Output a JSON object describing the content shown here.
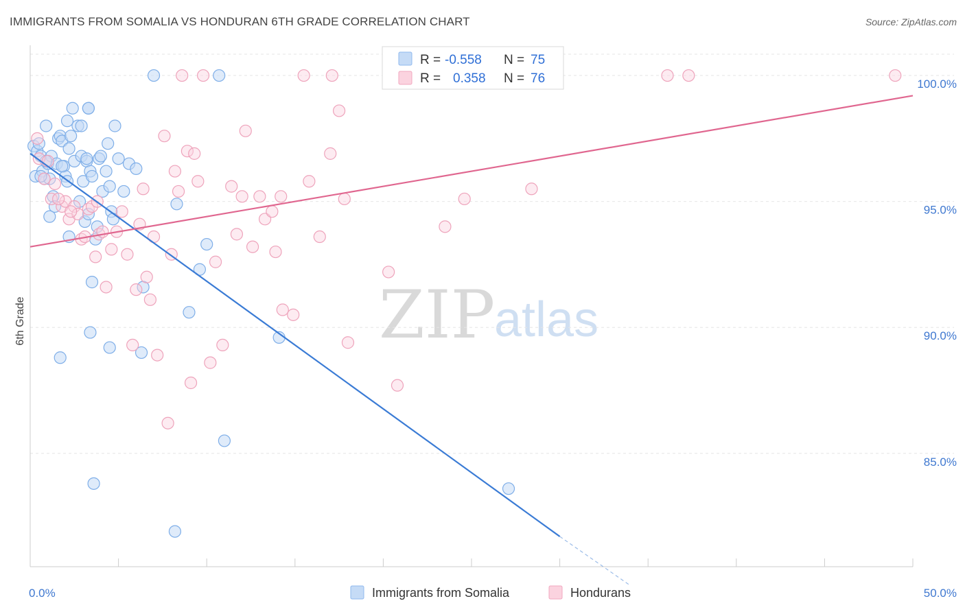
{
  "title": "IMMIGRANTS FROM SOMALIA VS HONDURAN 6TH GRADE CORRELATION CHART",
  "source": "Source: ZipAtlas.com",
  "watermark": {
    "zip": "ZIP",
    "atlas": "atlas"
  },
  "legend": {
    "rows": [
      {
        "r_label": "R =",
        "r_value": "-0.558",
        "n_label": "N =",
        "n_value": "75",
        "color": "#8fb8ee",
        "fill": "#c5dbf6"
      },
      {
        "r_label": "R =",
        "r_value": "0.358",
        "n_label": "N =",
        "n_value": "76",
        "color": "#f1a7bf",
        "fill": "#fbd3df"
      }
    ]
  },
  "bottom_legend": [
    "Immigrants from Somalia",
    "Hondurans"
  ],
  "chart_data": {
    "type": "scatter",
    "ylabel": "6th Grade",
    "xlim": [
      0,
      50
    ],
    "ylim": [
      80.5,
      101.2
    ],
    "x_ticks": [
      "0.0%",
      "50.0%"
    ],
    "y_ticks": [
      {
        "value": 100,
        "label": "100.0%"
      },
      {
        "value": 95,
        "label": "95.0%"
      },
      {
        "value": 90,
        "label": "90.0%"
      },
      {
        "value": 85,
        "label": "85.0%"
      }
    ],
    "grid": true,
    "colors": {
      "somalia": "#3a7bd5",
      "somalia_fill": "#c5dbf6",
      "hondurans": "#e0668f",
      "hondurans_fill": "#fbd3df"
    },
    "series": [
      {
        "name": "Immigrants from Somalia",
        "trend": {
          "x": [
            0,
            30
          ],
          "y": [
            96.9,
            81.7
          ],
          "dash_to": [
            33.9,
            79.8
          ]
        },
        "points": [
          [
            0.2,
            97.2
          ],
          [
            0.3,
            96.0
          ],
          [
            0.4,
            97.0
          ],
          [
            0.5,
            97.3
          ],
          [
            0.6,
            96.8
          ],
          [
            0.7,
            96.2
          ],
          [
            0.8,
            95.9
          ],
          [
            0.9,
            98.0
          ],
          [
            1.0,
            96.5
          ],
          [
            1.1,
            94.4
          ],
          [
            1.2,
            96.8
          ],
          [
            1.3,
            95.2
          ],
          [
            1.4,
            94.8
          ],
          [
            1.5,
            96.5
          ],
          [
            1.6,
            97.5
          ],
          [
            1.7,
            97.6
          ],
          [
            1.8,
            97.4
          ],
          [
            1.9,
            96.4
          ],
          [
            2.0,
            96.0
          ],
          [
            2.1,
            95.8
          ],
          [
            2.2,
            97.1
          ],
          [
            2.3,
            97.6
          ],
          [
            2.4,
            98.7
          ],
          [
            2.5,
            96.6
          ],
          [
            2.7,
            98.0
          ],
          [
            2.8,
            95.0
          ],
          [
            2.9,
            96.8
          ],
          [
            3.0,
            95.8
          ],
          [
            3.1,
            94.2
          ],
          [
            3.2,
            96.6
          ],
          [
            3.3,
            98.7
          ],
          [
            3.4,
            96.2
          ],
          [
            3.5,
            96.0
          ],
          [
            3.7,
            93.5
          ],
          [
            3.8,
            94.0
          ],
          [
            3.9,
            96.7
          ],
          [
            4.0,
            96.8
          ],
          [
            4.1,
            95.4
          ],
          [
            4.3,
            96.2
          ],
          [
            4.4,
            97.3
          ],
          [
            4.5,
            95.6
          ],
          [
            4.6,
            94.6
          ],
          [
            4.7,
            94.3
          ],
          [
            4.8,
            98.0
          ],
          [
            2.1,
            98.2
          ],
          [
            2.2,
            93.6
          ],
          [
            3.3,
            94.5
          ],
          [
            1.1,
            95.9
          ],
          [
            1.8,
            96.4
          ],
          [
            0.9,
            96.6
          ],
          [
            5.0,
            96.7
          ],
          [
            5.3,
            95.4
          ],
          [
            5.6,
            96.5
          ],
          [
            6.0,
            96.3
          ],
          [
            6.3,
            89.0
          ],
          [
            6.4,
            91.6
          ],
          [
            7.0,
            100.0
          ],
          [
            3.3,
            98.7
          ],
          [
            2.9,
            98.0
          ],
          [
            3.2,
            96.7
          ],
          [
            8.3,
            94.9
          ],
          [
            9.0,
            90.6
          ],
          [
            9.6,
            92.3
          ],
          [
            10.0,
            93.3
          ],
          [
            10.7,
            100.0
          ],
          [
            11.0,
            85.5
          ],
          [
            14.1,
            89.6
          ],
          [
            3.5,
            91.8
          ],
          [
            3.4,
            89.8
          ],
          [
            1.7,
            88.8
          ],
          [
            4.5,
            89.2
          ],
          [
            3.6,
            83.8
          ],
          [
            8.2,
            81.9
          ],
          [
            27.1,
            83.6
          ],
          [
            0.6,
            96.0
          ]
        ]
      },
      {
        "name": "Hondurans",
        "trend": {
          "x": [
            0,
            50
          ],
          "y": [
            93.2,
            99.2
          ]
        },
        "points": [
          [
            0.4,
            97.5
          ],
          [
            0.5,
            96.7
          ],
          [
            0.8,
            95.9
          ],
          [
            1.0,
            96.6
          ],
          [
            1.2,
            95.1
          ],
          [
            1.4,
            95.7
          ],
          [
            1.8,
            94.8
          ],
          [
            2.0,
            95.0
          ],
          [
            2.2,
            94.3
          ],
          [
            2.5,
            94.8
          ],
          [
            2.7,
            94.5
          ],
          [
            2.9,
            93.5
          ],
          [
            3.1,
            93.6
          ],
          [
            3.3,
            94.7
          ],
          [
            3.5,
            94.8
          ],
          [
            3.7,
            92.8
          ],
          [
            3.9,
            93.7
          ],
          [
            4.1,
            93.8
          ],
          [
            4.3,
            91.6
          ],
          [
            4.6,
            93.1
          ],
          [
            4.9,
            93.8
          ],
          [
            5.2,
            94.6
          ],
          [
            5.5,
            92.9
          ],
          [
            5.8,
            89.3
          ],
          [
            6.0,
            91.5
          ],
          [
            6.2,
            94.1
          ],
          [
            6.4,
            95.5
          ],
          [
            6.6,
            92.0
          ],
          [
            6.8,
            91.1
          ],
          [
            7.0,
            93.6
          ],
          [
            7.2,
            88.9
          ],
          [
            7.6,
            97.6
          ],
          [
            7.8,
            86.2
          ],
          [
            8.0,
            92.9
          ],
          [
            8.2,
            96.2
          ],
          [
            8.4,
            95.4
          ],
          [
            8.6,
            100.0
          ],
          [
            8.9,
            97.0
          ],
          [
            9.1,
            87.8
          ],
          [
            9.3,
            96.9
          ],
          [
            9.5,
            95.8
          ],
          [
            9.8,
            100.0
          ],
          [
            10.2,
            88.6
          ],
          [
            10.5,
            92.6
          ],
          [
            10.9,
            89.3
          ],
          [
            11.4,
            95.6
          ],
          [
            11.7,
            93.7
          ],
          [
            12.0,
            95.2
          ],
          [
            12.2,
            97.8
          ],
          [
            12.6,
            93.2
          ],
          [
            13.0,
            95.2
          ],
          [
            13.3,
            94.3
          ],
          [
            13.7,
            94.6
          ],
          [
            13.9,
            93.0
          ],
          [
            14.2,
            95.2
          ],
          [
            14.3,
            90.7
          ],
          [
            14.9,
            90.5
          ],
          [
            15.5,
            100.0
          ],
          [
            15.8,
            95.8
          ],
          [
            16.4,
            93.6
          ],
          [
            17.0,
            96.9
          ],
          [
            17.5,
            98.6
          ],
          [
            17.8,
            95.1
          ],
          [
            18.0,
            89.4
          ],
          [
            17.1,
            100.0
          ],
          [
            20.3,
            92.2
          ],
          [
            20.8,
            87.7
          ],
          [
            23.5,
            94.0
          ],
          [
            24.6,
            95.1
          ],
          [
            28.4,
            95.5
          ],
          [
            36.1,
            100.0
          ],
          [
            37.3,
            100.0
          ],
          [
            49.0,
            100.0
          ],
          [
            1.6,
            95.1
          ],
          [
            2.3,
            94.6
          ],
          [
            3.8,
            95.0
          ]
        ]
      }
    ]
  }
}
